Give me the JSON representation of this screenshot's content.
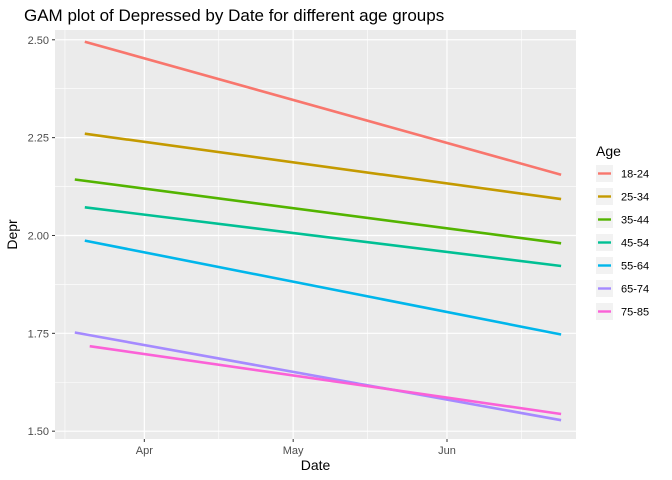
{
  "chart_data": {
    "type": "line",
    "title": "GAM plot of Depressed by Date for different age groups",
    "xlabel": "Date",
    "ylabel": "Depr",
    "x_ticks": [
      {
        "date": "2020-04-01",
        "label": "Apr"
      },
      {
        "date": "2020-05-01",
        "label": "May"
      },
      {
        "date": "2020-06-01",
        "label": "Jun"
      }
    ],
    "x_minor_ticks": [
      "2020-03-16",
      "2020-04-16",
      "2020-05-16",
      "2020-06-16"
    ],
    "xlim": [
      "2020-03-14",
      "2020-06-27"
    ],
    "y_ticks": [
      1.5,
      1.75,
      2.0,
      2.25,
      2.5
    ],
    "y_tick_labels": [
      "1.50",
      "1.75",
      "2.00",
      "2.25",
      "2.50"
    ],
    "ylim": [
      1.48,
      2.525
    ],
    "grid": true,
    "legend": {
      "title": "Age",
      "position": "right"
    },
    "series": [
      {
        "name": "18-24",
        "color": "#F8766D",
        "x": [
          "2020-03-20",
          "2020-06-24"
        ],
        "y": [
          2.495,
          2.155
        ]
      },
      {
        "name": "25-34",
        "color": "#C49A00",
        "x": [
          "2020-03-20",
          "2020-06-24"
        ],
        "y": [
          2.26,
          2.093
        ]
      },
      {
        "name": "35-44",
        "color": "#53B400",
        "x": [
          "2020-03-18",
          "2020-06-24"
        ],
        "y": [
          2.143,
          1.98
        ]
      },
      {
        "name": "45-54",
        "color": "#00C094",
        "x": [
          "2020-03-20",
          "2020-06-24"
        ],
        "y": [
          2.072,
          1.922
        ]
      },
      {
        "name": "55-64",
        "color": "#00B6EB",
        "x": [
          "2020-03-20",
          "2020-06-24"
        ],
        "y": [
          1.987,
          1.747
        ]
      },
      {
        "name": "65-74",
        "color": "#A58AFF",
        "x": [
          "2020-03-18",
          "2020-06-24"
        ],
        "y": [
          1.752,
          1.528
        ]
      },
      {
        "name": "75-85",
        "color": "#FB61D7",
        "x": [
          "2020-03-21",
          "2020-06-24"
        ],
        "y": [
          1.717,
          1.544
        ]
      }
    ]
  }
}
